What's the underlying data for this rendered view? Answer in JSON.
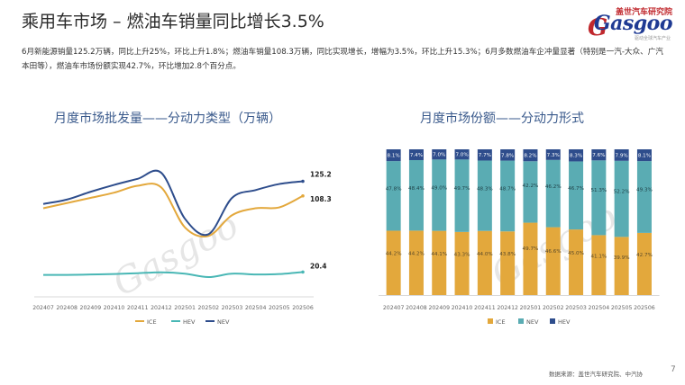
{
  "page": {
    "title": "乘用车市场 – 燃油车销量同比增长3.5%",
    "summary": "6月新能源销量125.2万辆，同比上升25%，环比上升1.8%；燃油车销量108.3万辆，同比实现增长，增幅为3.5%，环比上升15.3%；6月多数燃油车企冲量显著（特别是一汽-大众、广汽本田等），燃油车市场份额实现42.7%，环比增加2.8个百分点。",
    "source": "数据来源：盖世汽车研究院、中汽协",
    "page_number": "7",
    "logo": {
      "cn": "盖世汽车研究院",
      "en": "Gasgoo",
      "sub": "驱动全球汽车产业",
      "g": "G"
    },
    "watermark": "Gasgoo"
  },
  "colors": {
    "ice": "#E3A83C",
    "nev": "#5AACB3",
    "hev": "#2E4D8C",
    "nev_line": "#2E4D8C",
    "hev_line": "#49B7B5"
  },
  "chart_data": [
    {
      "type": "line",
      "title": "月度市场批发量——分动力类型（万辆）",
      "x": [
        "202407",
        "202408",
        "202409",
        "202410",
        "202411",
        "202412",
        "202501",
        "202502",
        "202503",
        "202504",
        "202505",
        "202506"
      ],
      "series": [
        {
          "name": "ICE",
          "values": [
            94,
            100,
            106,
            112,
            120,
            118,
            72,
            62,
            86,
            94,
            95,
            108.3
          ]
        },
        {
          "name": "HEV",
          "values": [
            17,
            17,
            17.5,
            18,
            19,
            20,
            18.5,
            14.5,
            18.5,
            17.5,
            18,
            20.4
          ]
        },
        {
          "name": "NEV",
          "values": [
            99,
            104,
            113,
            121,
            128,
            135,
            82,
            64,
            106,
            115,
            122,
            125.2
          ]
        }
      ],
      "end_labels": {
        "NEV": "125.2",
        "ICE": "108.3",
        "HEV": "20.4"
      },
      "legend": [
        "ICE",
        "HEV",
        "NEV"
      ],
      "ylim": [
        0,
        160
      ]
    },
    {
      "type": "bar",
      "stacked": true,
      "title": "月度市场份额——分动力形式",
      "categories": [
        "202407",
        "202408",
        "202409",
        "202410",
        "202411",
        "202412",
        "202501",
        "202502",
        "202503",
        "202504",
        "202505",
        "202506"
      ],
      "series": [
        {
          "name": "ICE",
          "values": [
            44.2,
            44.2,
            44.1,
            43.3,
            44.0,
            43.8,
            49.7,
            46.6,
            45.0,
            41.1,
            39.9,
            42.7
          ]
        },
        {
          "name": "NEV",
          "values": [
            47.8,
            48.4,
            49.0,
            49.7,
            48.3,
            48.7,
            42.2,
            46.2,
            46.7,
            51.3,
            52.2,
            49.3
          ]
        },
        {
          "name": "HEV",
          "values": [
            8.1,
            7.4,
            7.0,
            7.0,
            7.7,
            7.8,
            8.2,
            7.3,
            8.3,
            7.6,
            7.9,
            8.1
          ]
        }
      ],
      "labels": {
        "ICE": [
          "44.2%",
          "44.2%",
          "44.1%",
          "43.3%",
          "44.0%",
          "43.8%",
          "49.7%",
          "46.6%",
          "45.0%",
          "41.1%",
          "39.9%",
          "42.7%"
        ],
        "NEV": [
          "47.8%",
          "48.4%",
          "49.0%",
          "49.7%",
          "48.3%",
          "48.7%",
          "42.2%",
          "46.2%",
          "46.7%",
          "51.3%",
          "52.2%",
          "49.3%"
        ],
        "HEV": [
          "8.1%",
          "7.4%",
          "7.0%",
          "7.0%",
          "7.7%",
          "7.8%",
          "8.2%",
          "7.3%",
          "8.3%",
          "7.6%",
          "7.9%",
          "8.1%"
        ]
      },
      "legend": [
        "ICE",
        "NEV",
        "HEV"
      ],
      "ylim": [
        0,
        100
      ]
    }
  ]
}
